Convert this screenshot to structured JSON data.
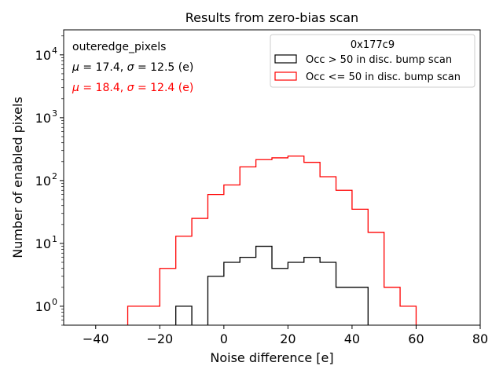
{
  "chart_data": {
    "type": "step-histogram",
    "title": "Results from zero-bias scan",
    "xlabel": "Noise difference [e]",
    "ylabel": "Number of enabled pixels",
    "xlim": [
      -50,
      80
    ],
    "ylim": [
      0.5,
      25000
    ],
    "yscale": "log",
    "xticks": [
      -40,
      -20,
      0,
      20,
      40,
      60,
      80
    ],
    "xtick_labels": [
      "−40",
      "−20",
      "0",
      "20",
      "40",
      "60",
      "80"
    ],
    "yticks": [
      1,
      10,
      100,
      1000,
      10000
    ],
    "ytick_labels": [
      {
        "base": "10",
        "exp": "0"
      },
      {
        "base": "10",
        "exp": "1"
      },
      {
        "base": "10",
        "exp": "2"
      },
      {
        "base": "10",
        "exp": "3"
      },
      {
        "base": "10",
        "exp": "4"
      }
    ],
    "bin_width": 5,
    "annotations": {
      "group": "outeredge_pixels",
      "stats": [
        {
          "series": "occ_gt_50",
          "text_mu": "μ",
          "text_mid": " = 17.4, ",
          "text_sigma": "σ",
          "text_end": " = 12.5 (e)",
          "color": "#000000"
        },
        {
          "series": "occ_le_50",
          "text_mu": "μ",
          "text_mid": " = 18.4, ",
          "text_sigma": "σ",
          "text_end": " = 12.4 (e)",
          "color": "#ff0000"
        }
      ]
    },
    "legend": {
      "title": "0x177c9",
      "position": "top-right"
    },
    "series": [
      {
        "id": "occ_gt_50",
        "name": "Occ > 50 in disc. bump scan",
        "color": "#000000",
        "bins": [
          -15,
          -10,
          -5,
          0,
          5,
          10,
          15,
          20,
          25,
          30,
          35,
          40
        ],
        "values": [
          1,
          0,
          3,
          5,
          6,
          9,
          4,
          5,
          6,
          5,
          2,
          2
        ]
      },
      {
        "id": "occ_le_50",
        "name": "Occ <= 50 in disc. bump scan",
        "color": "#ff0000",
        "bins": [
          -30,
          -25,
          -20,
          -15,
          -10,
          -5,
          0,
          5,
          10,
          15,
          20,
          25,
          30,
          35,
          40,
          45,
          50,
          55
        ],
        "values": [
          1,
          1,
          4,
          13,
          25,
          60,
          85,
          165,
          215,
          230,
          245,
          195,
          115,
          70,
          35,
          15,
          2,
          1
        ]
      }
    ]
  }
}
